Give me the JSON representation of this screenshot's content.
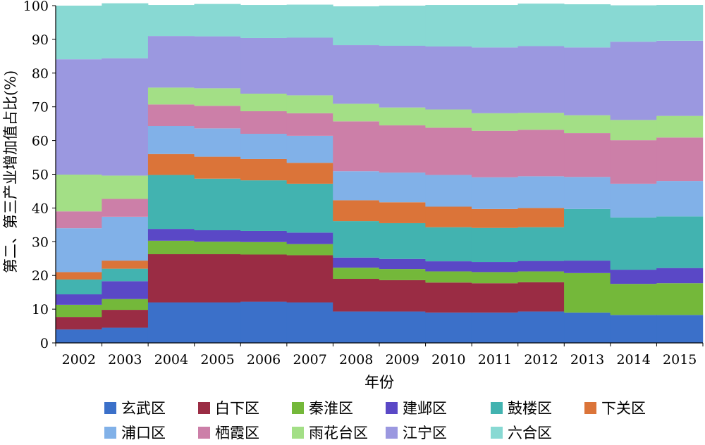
{
  "chart_data": {
    "type": "bar",
    "stacked": true,
    "xlabel": "年份",
    "ylabel": "第二、第三产业增加值占比(%)",
    "ylim": [
      0,
      100
    ],
    "yticks": [
      0,
      10,
      20,
      30,
      40,
      50,
      60,
      70,
      80,
      90,
      100
    ],
    "categories": [
      "2002",
      "2003",
      "2004",
      "2005",
      "2006",
      "2007",
      "2008",
      "2009",
      "2010",
      "2011",
      "2012",
      "2013",
      "2014",
      "2015"
    ],
    "series": [
      {
        "name": "玄武区",
        "color": "#3b70c9",
        "values": [
          4,
          4.5,
          12,
          12,
          12.2,
          12,
          9.3,
          9.3,
          9,
          9,
          9.3,
          9,
          8.3,
          8.3
        ]
      },
      {
        "name": "白下区",
        "color": "#9a2c44",
        "values": [
          3.7,
          5.3,
          14.3,
          14.3,
          14,
          14,
          9.7,
          9.3,
          8.9,
          8.7,
          8.7,
          0,
          0,
          0
        ]
      },
      {
        "name": "秦淮区",
        "color": "#74b83a",
        "values": [
          3.6,
          3.2,
          4,
          3.7,
          3.7,
          3.3,
          3.3,
          3.3,
          3.3,
          3.3,
          3.2,
          11.7,
          9.2,
          9.4
        ]
      },
      {
        "name": "建邺区",
        "color": "#5a48c6",
        "values": [
          3.1,
          5.3,
          3.5,
          3.4,
          3.3,
          3.4,
          3,
          3,
          3,
          3,
          3.1,
          3.7,
          4.2,
          4.5
        ]
      },
      {
        "name": "鼓楼区",
        "color": "#42b3b0",
        "values": [
          4.4,
          3.7,
          16,
          15.3,
          15,
          14.5,
          10.8,
          10.6,
          10.1,
          10.1,
          10,
          15.3,
          15.5,
          15.3
        ]
      },
      {
        "name": "下关区",
        "color": "#db7439",
        "values": [
          2.2,
          2.4,
          6.2,
          6.5,
          6.3,
          6.2,
          6.2,
          6.2,
          6.1,
          5.6,
          5.7,
          0,
          0,
          0
        ]
      },
      {
        "name": "浦口区",
        "color": "#81b1e8",
        "values": [
          13,
          13,
          8.3,
          8.4,
          7.5,
          8,
          8.6,
          8.8,
          9.4,
          9.4,
          9.4,
          9.5,
          10,
          10.5
        ]
      },
      {
        "name": "栖霞区",
        "color": "#cc7fa8",
        "values": [
          5,
          5.3,
          6.4,
          6.7,
          6.7,
          6.7,
          14.8,
          14,
          14,
          13.8,
          13.8,
          13,
          12.9,
          12.9
        ]
      },
      {
        "name": "雨花台区",
        "color": "#a3df86",
        "values": [
          10.9,
          6.9,
          5,
          5.2,
          5.2,
          5.3,
          5.2,
          5.3,
          5.4,
          5.2,
          5,
          5.3,
          6,
          6.4
        ]
      },
      {
        "name": "江宁区",
        "color": "#9b98e0",
        "values": [
          34.2,
          34.8,
          15.3,
          15.4,
          16.5,
          17.1,
          17.4,
          18.3,
          18.7,
          19.5,
          19.8,
          20.1,
          23.2,
          22.3
        ]
      },
      {
        "name": "六合区",
        "color": "#88d9d3",
        "values": [
          15.9,
          16.3,
          9.2,
          9.6,
          9.8,
          9.8,
          11.5,
          11.9,
          12.3,
          12.6,
          12.6,
          12.8,
          10.8,
          10.6
        ]
      }
    ]
  }
}
